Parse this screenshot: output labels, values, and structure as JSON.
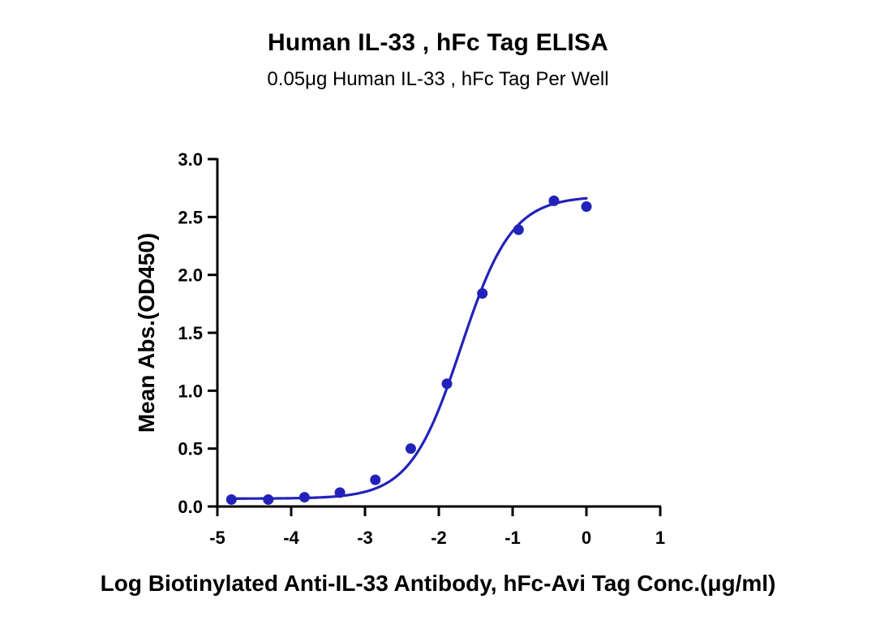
{
  "chart_data": {
    "type": "scatter",
    "title": "Human IL-33 , hFc Tag ELISA",
    "subtitle": "0.05μg Human IL-33 , hFc Tag Per Well",
    "xlabel": "Log Biotinylated Anti-IL-33 Antibody, hFc-Avi Tag Conc.(μg/ml)",
    "ylabel": "Mean Abs.(OD450)",
    "xlim": [
      -5,
      1
    ],
    "ylim": [
      0.0,
      3.0
    ],
    "x_ticks": [
      "-5",
      "-4",
      "-3",
      "-2",
      "-1",
      "0",
      "1"
    ],
    "y_ticks": [
      "0.0",
      "0.5",
      "1.0",
      "1.5",
      "2.0",
      "2.5",
      "3.0"
    ],
    "grid": false,
    "series": [
      {
        "x": [
          -4.81,
          -4.31,
          -3.82,
          -3.34,
          -2.86,
          -2.38,
          -1.89,
          -1.41,
          -0.92,
          -0.44,
          0.0
        ],
        "y": [
          0.06,
          0.06,
          0.08,
          0.12,
          0.23,
          0.5,
          1.06,
          1.84,
          2.39,
          2.64,
          2.59
        ],
        "fit": {
          "type": "4PL",
          "bottom": 0.068,
          "top": 2.68,
          "logEC50": -1.7,
          "hill": 1.26
        }
      }
    ],
    "colors": {
      "series": "#2222BB",
      "axis": "#000000"
    }
  }
}
